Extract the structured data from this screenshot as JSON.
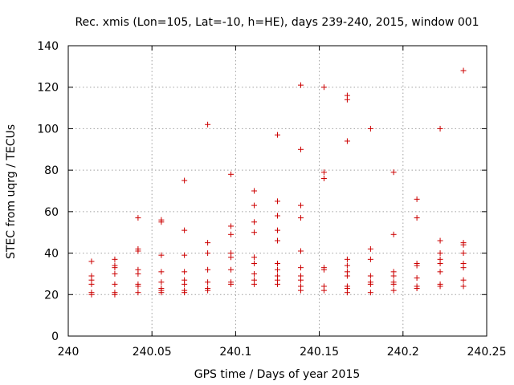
{
  "chart_data": {
    "type": "scatter",
    "title": "Rec. xmis (Lon=105, Lat=-10, h=HE), days 239-240, 2015, window 001",
    "xlabel": "GPS time / Days of year 2015",
    "ylabel": "STEC from uqrg / TECUs",
    "xlim": [
      240,
      240.25
    ],
    "ylim": [
      0,
      140
    ],
    "x_ticks": [
      "240",
      "240.05",
      "240.1",
      "240.15",
      "240.2",
      "240.25"
    ],
    "y_ticks": [
      "0",
      "20",
      "40",
      "60",
      "80",
      "100",
      "120",
      "140"
    ],
    "grid": true,
    "marker": "+",
    "color": "#cc0000",
    "points": [
      [
        240.0139,
        36
      ],
      [
        240.0139,
        29
      ],
      [
        240.0139,
        27
      ],
      [
        240.0139,
        25
      ],
      [
        240.0139,
        21
      ],
      [
        240.0139,
        20
      ],
      [
        240.0278,
        37
      ],
      [
        240.0278,
        34
      ],
      [
        240.0278,
        33
      ],
      [
        240.0278,
        30
      ],
      [
        240.0278,
        25
      ],
      [
        240.0278,
        21
      ],
      [
        240.0278,
        20
      ],
      [
        240.0417,
        57
      ],
      [
        240.0417,
        42
      ],
      [
        240.0417,
        41
      ],
      [
        240.0417,
        32
      ],
      [
        240.0417,
        30
      ],
      [
        240.0417,
        25
      ],
      [
        240.0417,
        24
      ],
      [
        240.0417,
        21
      ],
      [
        240.0556,
        56
      ],
      [
        240.0556,
        55
      ],
      [
        240.0556,
        39
      ],
      [
        240.0556,
        31
      ],
      [
        240.0556,
        26
      ],
      [
        240.0556,
        23
      ],
      [
        240.0556,
        22
      ],
      [
        240.0556,
        21
      ],
      [
        240.0694,
        75
      ],
      [
        240.0694,
        51
      ],
      [
        240.0694,
        39
      ],
      [
        240.0694,
        31
      ],
      [
        240.0694,
        27
      ],
      [
        240.0694,
        25
      ],
      [
        240.0694,
        22
      ],
      [
        240.0694,
        21
      ],
      [
        240.0833,
        102
      ],
      [
        240.0833,
        45
      ],
      [
        240.0833,
        40
      ],
      [
        240.0833,
        32
      ],
      [
        240.0833,
        26
      ],
      [
        240.0833,
        23
      ],
      [
        240.0833,
        22
      ],
      [
        240.0972,
        78
      ],
      [
        240.0972,
        53
      ],
      [
        240.0972,
        49
      ],
      [
        240.0972,
        40
      ],
      [
        240.0972,
        38
      ],
      [
        240.0972,
        32
      ],
      [
        240.0972,
        26
      ],
      [
        240.0972,
        25
      ],
      [
        240.1111,
        70
      ],
      [
        240.1111,
        63
      ],
      [
        240.1111,
        55
      ],
      [
        240.1111,
        50
      ],
      [
        240.1111,
        38
      ],
      [
        240.1111,
        35
      ],
      [
        240.1111,
        30
      ],
      [
        240.1111,
        27
      ],
      [
        240.1111,
        25
      ],
      [
        240.125,
        97
      ],
      [
        240.125,
        65
      ],
      [
        240.125,
        58
      ],
      [
        240.125,
        51
      ],
      [
        240.125,
        46
      ],
      [
        240.125,
        35
      ],
      [
        240.125,
        32
      ],
      [
        240.125,
        29
      ],
      [
        240.125,
        27
      ],
      [
        240.125,
        25
      ],
      [
        240.1389,
        121
      ],
      [
        240.1389,
        90
      ],
      [
        240.1389,
        63
      ],
      [
        240.1389,
        57
      ],
      [
        240.1389,
        41
      ],
      [
        240.1389,
        33
      ],
      [
        240.1389,
        29
      ],
      [
        240.1389,
        27
      ],
      [
        240.1389,
        24
      ],
      [
        240.1389,
        22
      ],
      [
        240.1528,
        120
      ],
      [
        240.1528,
        79
      ],
      [
        240.1528,
        76
      ],
      [
        240.1528,
        33
      ],
      [
        240.1528,
        32
      ],
      [
        240.1528,
        24
      ],
      [
        240.1528,
        22
      ],
      [
        240.1667,
        116
      ],
      [
        240.1667,
        114
      ],
      [
        240.1667,
        94
      ],
      [
        240.1667,
        37
      ],
      [
        240.1667,
        34
      ],
      [
        240.1667,
        31
      ],
      [
        240.1667,
        29
      ],
      [
        240.1667,
        24
      ],
      [
        240.1667,
        23
      ],
      [
        240.1667,
        21
      ],
      [
        240.1806,
        100
      ],
      [
        240.1806,
        42
      ],
      [
        240.1806,
        37
      ],
      [
        240.1806,
        29
      ],
      [
        240.1806,
        26
      ],
      [
        240.1806,
        25
      ],
      [
        240.1806,
        21
      ],
      [
        240.1944,
        79
      ],
      [
        240.1944,
        49
      ],
      [
        240.1944,
        31
      ],
      [
        240.1944,
        29
      ],
      [
        240.1944,
        26
      ],
      [
        240.1944,
        25
      ],
      [
        240.1944,
        22
      ],
      [
        240.2083,
        66
      ],
      [
        240.2083,
        57
      ],
      [
        240.2083,
        35
      ],
      [
        240.2083,
        34
      ],
      [
        240.2083,
        28
      ],
      [
        240.2083,
        24
      ],
      [
        240.2083,
        23
      ],
      [
        240.2222,
        100
      ],
      [
        240.2222,
        46
      ],
      [
        240.2222,
        40
      ],
      [
        240.2222,
        37
      ],
      [
        240.2222,
        35
      ],
      [
        240.2222,
        31
      ],
      [
        240.2222,
        25
      ],
      [
        240.2222,
        24
      ],
      [
        240.2361,
        128
      ],
      [
        240.2361,
        45
      ],
      [
        240.2361,
        44
      ],
      [
        240.2361,
        40
      ],
      [
        240.2361,
        35
      ],
      [
        240.2361,
        33
      ],
      [
        240.2361,
        27
      ],
      [
        240.2361,
        24
      ]
    ]
  }
}
